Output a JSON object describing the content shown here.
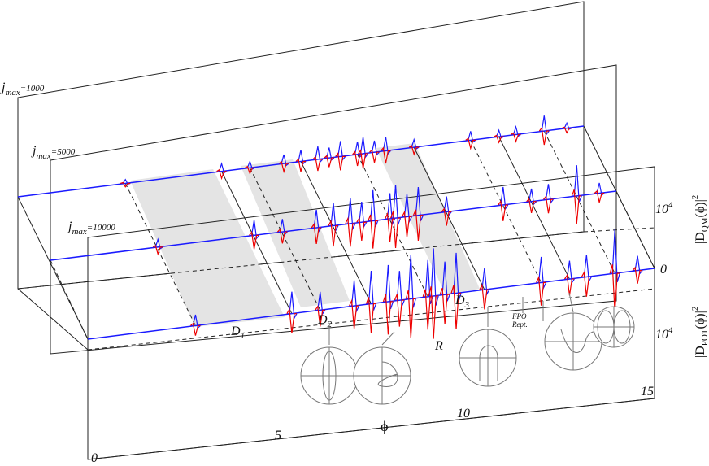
{
  "panels": [
    {
      "symbol": "j",
      "subscript": "max",
      "text": "=1000"
    },
    {
      "symbol": "j",
      "subscript": "max",
      "text": "=5000"
    },
    {
      "symbol": "j",
      "subscript": "max",
      "text": "=10000"
    }
  ],
  "regions": [
    "D",
    "D",
    "D",
    "R"
  ],
  "region_subscripts": [
    "1",
    "2",
    "3"
  ],
  "annotations": {
    "fpo": "FPO",
    "fpo_rept_1": "FPO",
    "fpo_rept_2": "Rept."
  },
  "x_axis": {
    "label": "ϕ",
    "ticks": [
      "0",
      "5",
      "10",
      "15"
    ]
  },
  "right_axis": {
    "upper_label": "|D",
    "upper_sub": "QM",
    "upper_arg": "(ϕ)|",
    "upper_exp": "2",
    "lower_label": "|D",
    "lower_sub": "POT",
    "lower_arg": "(ϕ)|",
    "lower_exp": "2",
    "ticks": [
      {
        "base": "10",
        "exp": "4"
      },
      {
        "base": "0"
      },
      {
        "base": "10",
        "exp": "4"
      }
    ]
  }
}
